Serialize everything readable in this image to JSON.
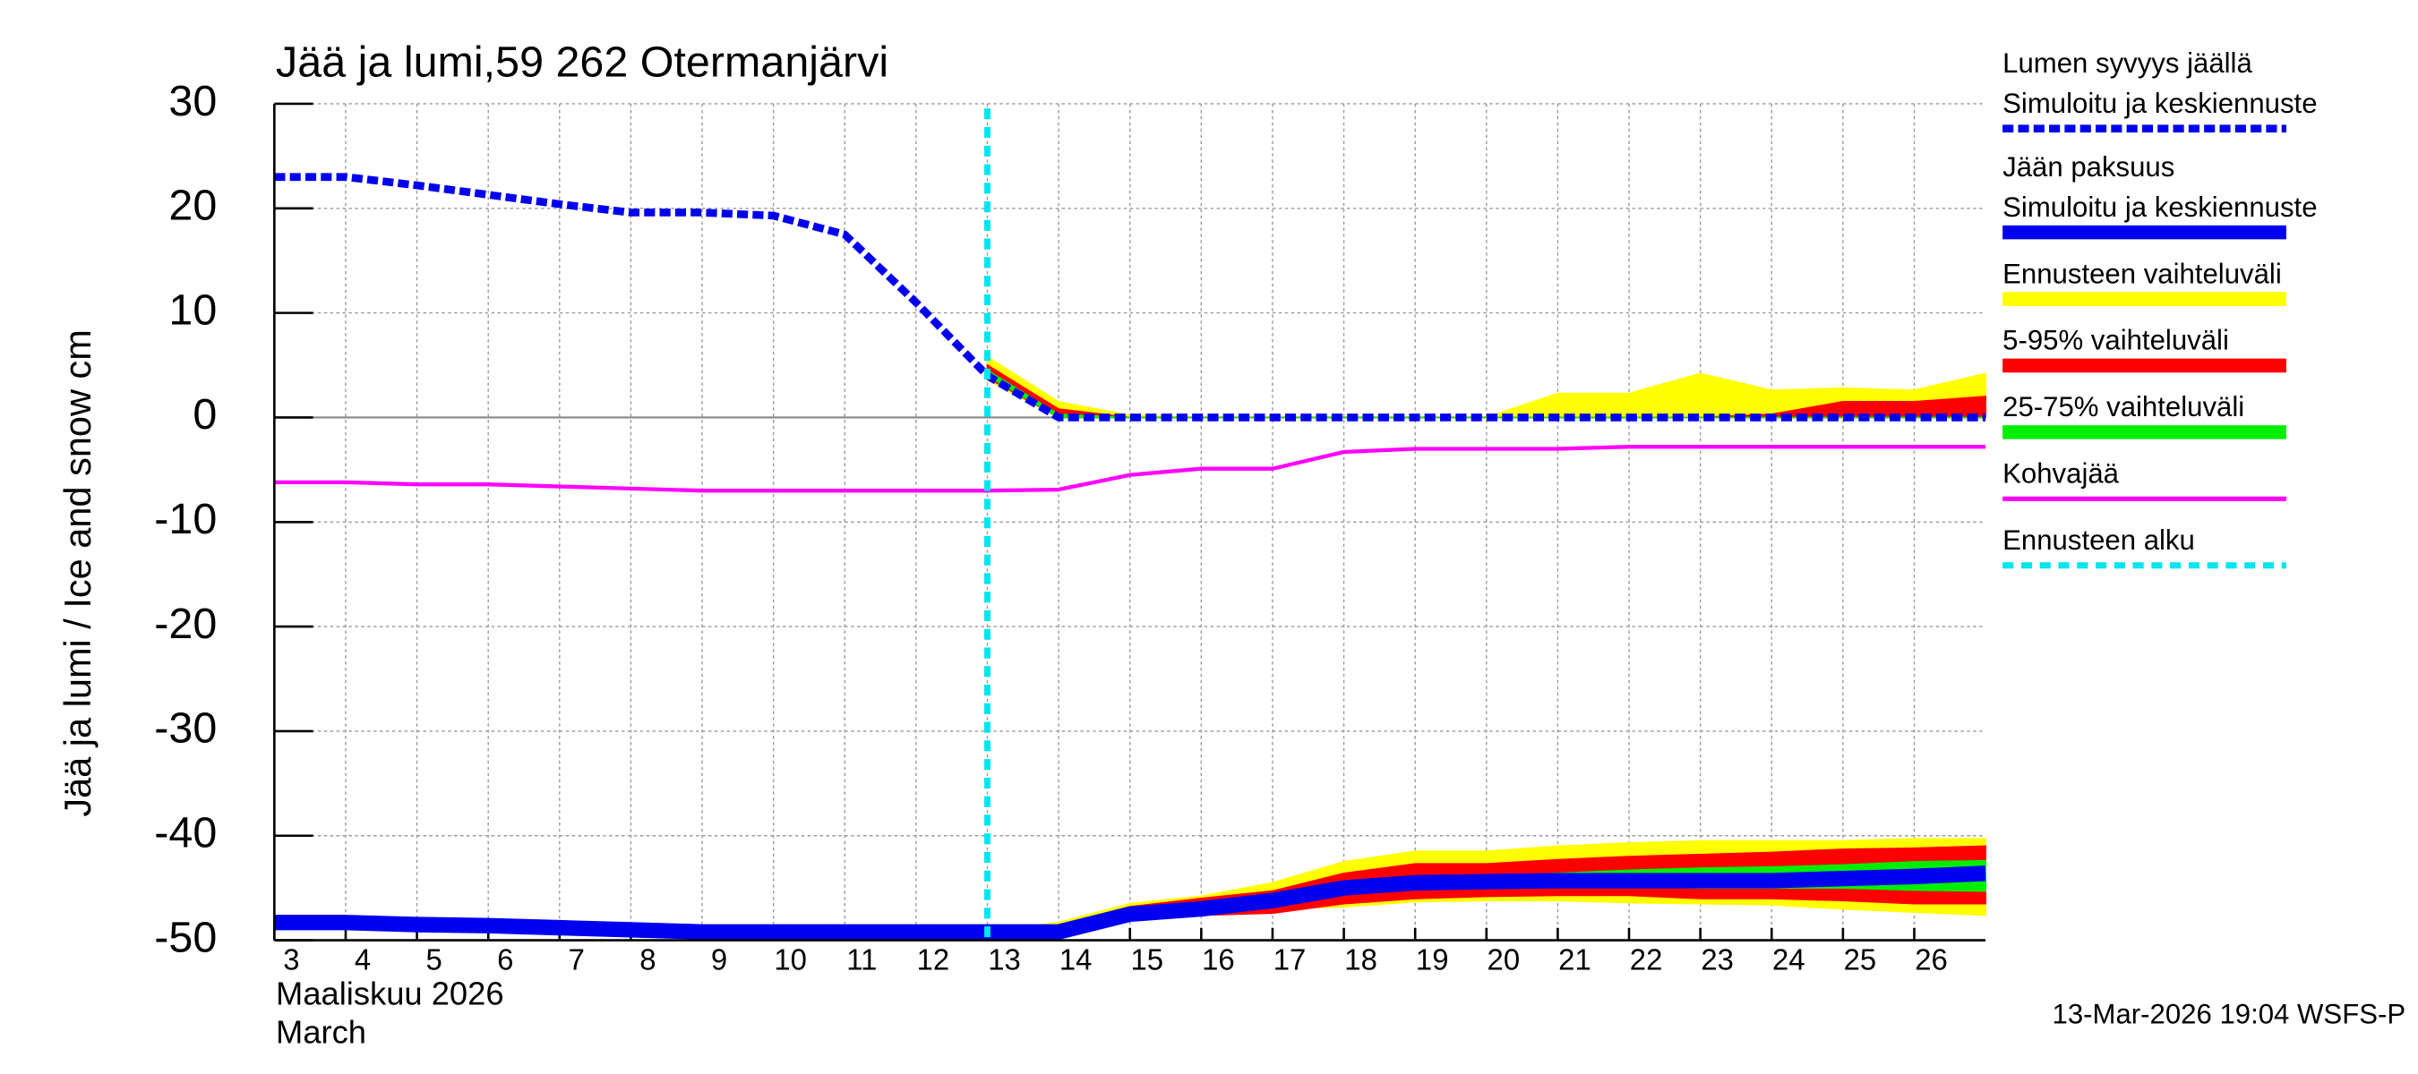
{
  "chart_data": {
    "type": "ice-snow",
    "title": "Jää ja lumi,59 262 Otermanjärvi",
    "ylabel": "Jää ja lumi / Ice and snow    cm",
    "xlabel": "Maaliskuu 2026",
    "xlabel2": "March",
    "footer": "13-Mar-2026 19:04 WSFS-P",
    "xlim": [
      3,
      27
    ],
    "xticks": [
      3,
      4,
      5,
      6,
      7,
      8,
      9,
      10,
      11,
      12,
      13,
      14,
      15,
      16,
      17,
      18,
      19,
      20,
      21,
      22,
      23,
      24,
      25,
      26
    ],
    "ylim": [
      -50,
      30
    ],
    "yticks": [
      -50,
      -40,
      -30,
      -20,
      -10,
      0,
      10,
      20,
      30
    ],
    "grid": true,
    "x": [
      3,
      4,
      5,
      6,
      7,
      8,
      9,
      10,
      11,
      12,
      13,
      14,
      15,
      16,
      17,
      18,
      19,
      20,
      21,
      22,
      23,
      24,
      25,
      26,
      27
    ],
    "series": [
      {
        "name": "Lumen syvyys jäällä",
        "subname": "Simuloitu ja keskiennuste",
        "color": "#0000ee",
        "style": "dashed",
        "values": [
          23,
          23,
          22.2,
          21.3,
          20.4,
          19.6,
          19.6,
          19.3,
          17.5,
          11,
          4,
          0,
          0,
          0,
          0,
          0,
          0,
          0,
          0,
          0,
          0,
          0,
          0,
          0,
          0
        ]
      },
      {
        "name": "Jään paksuus",
        "subname": "Simuloitu ja keskiennuste",
        "color": "#0000ee",
        "style": "thick",
        "values": [
          -48.3,
          -48.3,
          -48.5,
          -48.6,
          -48.8,
          -49,
          -49.2,
          -49.2,
          -49.2,
          -49.2,
          -49.2,
          -49.2,
          -47.5,
          -47,
          -46.2,
          -45,
          -44.5,
          -44.4,
          -44.3,
          -44.3,
          -44.3,
          -44.3,
          -44.1,
          -43.9,
          -43.6
        ]
      },
      {
        "name": "Kohvajää",
        "color": "#ff00ff",
        "style": "thin",
        "values": [
          -6.2,
          -6.2,
          -6.4,
          -6.4,
          -6.6,
          -6.8,
          -7,
          -7,
          -7,
          -7,
          -7,
          -6.9,
          -5.5,
          -4.9,
          -4.9,
          -3.3,
          -3,
          -3,
          -3,
          -2.8,
          -2.8,
          -2.8,
          -2.8,
          -2.8,
          -2.8
        ]
      }
    ],
    "bands": [
      {
        "name": "Ennusteen vaihteluväli",
        "color": "#ffff00",
        "x": [
          13,
          14,
          15,
          16,
          17,
          18,
          19,
          20,
          21,
          22,
          23,
          24,
          25,
          26,
          27
        ],
        "ice_low": [
          -49.2,
          -49,
          -48,
          -47.5,
          -47,
          -46.8,
          -46.3,
          -46.2,
          -46.2,
          -46.4,
          -46.5,
          -46.6,
          -47,
          -47.3,
          -47.6
        ],
        "ice_high": [
          -49.2,
          -48.3,
          -46.5,
          -45.8,
          -44.5,
          -42.5,
          -41.5,
          -41.5,
          -41,
          -40.7,
          -40.5,
          -40.5,
          -40.5,
          -40.3,
          -40.3
        ],
        "snow_low": [
          3.6,
          0,
          0,
          0,
          0,
          0,
          0,
          0,
          0,
          0,
          0,
          0,
          0,
          0,
          0
        ],
        "snow_high": [
          5.8,
          1.5,
          0.2,
          0,
          0,
          0,
          0,
          0,
          2.3,
          2.3,
          4.2,
          2.6,
          2.8,
          2.6,
          4.2
        ]
      },
      {
        "name": "5-95% vaihteluväli",
        "color": "#ff0000",
        "x": [
          13,
          14,
          15,
          16,
          17,
          18,
          19,
          20,
          21,
          22,
          23,
          24,
          25,
          26,
          27
        ],
        "ice_low": [
          -49.2,
          -49.2,
          -48,
          -47.6,
          -47.4,
          -46.5,
          -46,
          -45.8,
          -45.7,
          -45.7,
          -46,
          -46,
          -46.2,
          -46.5,
          -46.5
        ],
        "ice_high": [
          -49.2,
          -48.6,
          -46.8,
          -46,
          -45.3,
          -43.6,
          -42.7,
          -42.7,
          -42.3,
          -42,
          -41.8,
          -41.6,
          -41.3,
          -41.2,
          -41
        ],
        "snow_low": [
          3.8,
          0,
          0,
          0,
          0,
          0,
          0,
          0,
          0,
          0,
          0,
          0,
          0,
          0,
          0
        ],
        "snow_high": [
          5,
          0.8,
          0,
          0,
          0,
          0,
          0,
          0,
          0,
          0,
          0,
          0.3,
          1.5,
          1.5,
          2
        ]
      },
      {
        "name": "25-75% vaihteluväli",
        "color": "#00ee00",
        "x": [
          13,
          14,
          15,
          16,
          17,
          18,
          19,
          20,
          21,
          22,
          23,
          24,
          25,
          26,
          27
        ],
        "ice_low": [
          -49.2,
          -49.2,
          -47.8,
          -47.3,
          -46.6,
          -45.5,
          -45,
          -44.9,
          -44.8,
          -44.8,
          -45,
          -45,
          -45,
          -45.2,
          -45.3
        ],
        "ice_high": [
          -49.2,
          -49,
          -47.3,
          -46.6,
          -45.8,
          -44.6,
          -44,
          -43.9,
          -43.6,
          -43.3,
          -43.1,
          -43,
          -42.8,
          -42.5,
          -42.4
        ],
        "snow_low": [
          4,
          0,
          0,
          0,
          0,
          0,
          0,
          0,
          0,
          0,
          0,
          0,
          0,
          0,
          0
        ],
        "snow_high": [
          4.5,
          0.3,
          0,
          0,
          0,
          0,
          0,
          0,
          0,
          0,
          0,
          0,
          0,
          0,
          0
        ]
      }
    ],
    "forecast_start": {
      "name": "Ennusteen alku",
      "color": "#00e5ee",
      "x": 13
    }
  }
}
